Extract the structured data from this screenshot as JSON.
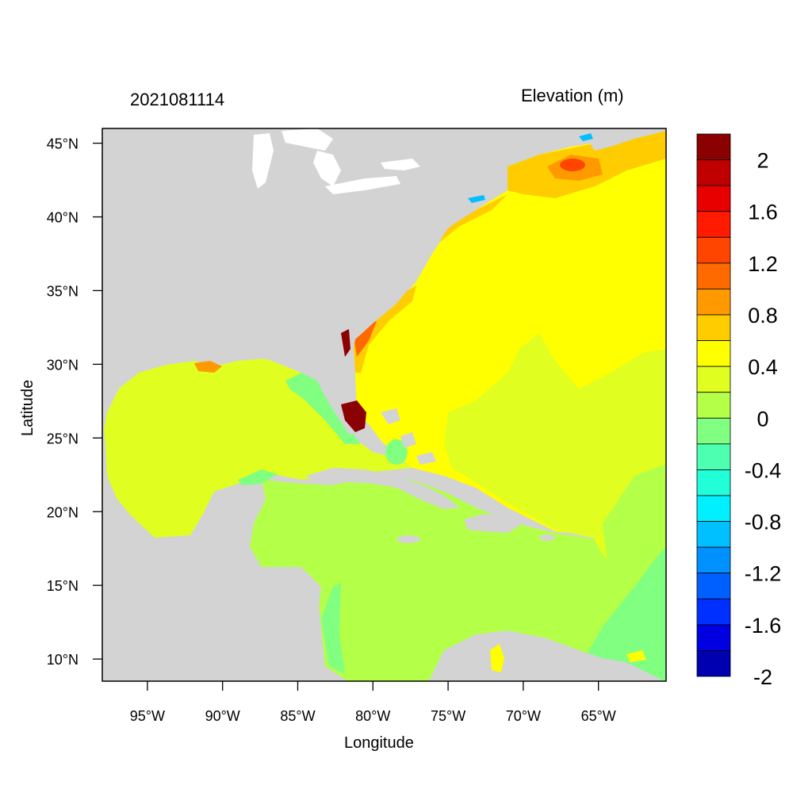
{
  "header": {
    "date_label": "2021081114",
    "variable_label": "Elevation (m)"
  },
  "axes": {
    "xlabel": "Longitude",
    "ylabel": "Latitude",
    "x_ticks": [
      "95°W",
      "90°W",
      "85°W",
      "80°W",
      "75°W",
      "70°W",
      "65°W"
    ],
    "y_ticks": [
      "45°N",
      "40°N",
      "35°N",
      "30°N",
      "25°N",
      "20°N",
      "15°N",
      "10°N"
    ]
  },
  "colorbar": {
    "labels": [
      "2",
      "1.6",
      "1.2",
      "0.8",
      "0.4",
      "0",
      "-0.4",
      "-0.8",
      "-1.2",
      "-1.6",
      "-2"
    ],
    "colors": [
      "#8b0000",
      "#c00000",
      "#e80000",
      "#ff1a00",
      "#ff4500",
      "#ff6a00",
      "#ff9900",
      "#ffcc00",
      "#ffff00",
      "#e0ff20",
      "#b4ff48",
      "#80ff80",
      "#4dffb0",
      "#20ffd8",
      "#00f0ff",
      "#00c0ff",
      "#0090ff",
      "#0060ff",
      "#0030ff",
      "#0000e0",
      "#0000b0"
    ]
  },
  "map": {
    "land_color": "#d3d3d3",
    "lake_color": "#ffffff"
  },
  "chart_data": {
    "type": "heatmap",
    "title": "2021081114",
    "subtitle": "Elevation (m)",
    "xlabel": "Longitude",
    "ylabel": "Latitude",
    "xlim": [
      -98,
      -60.5
    ],
    "ylim": [
      8.5,
      46
    ],
    "colorbar_range": [
      -2,
      2
    ],
    "colorbar_step": 0.2
  }
}
